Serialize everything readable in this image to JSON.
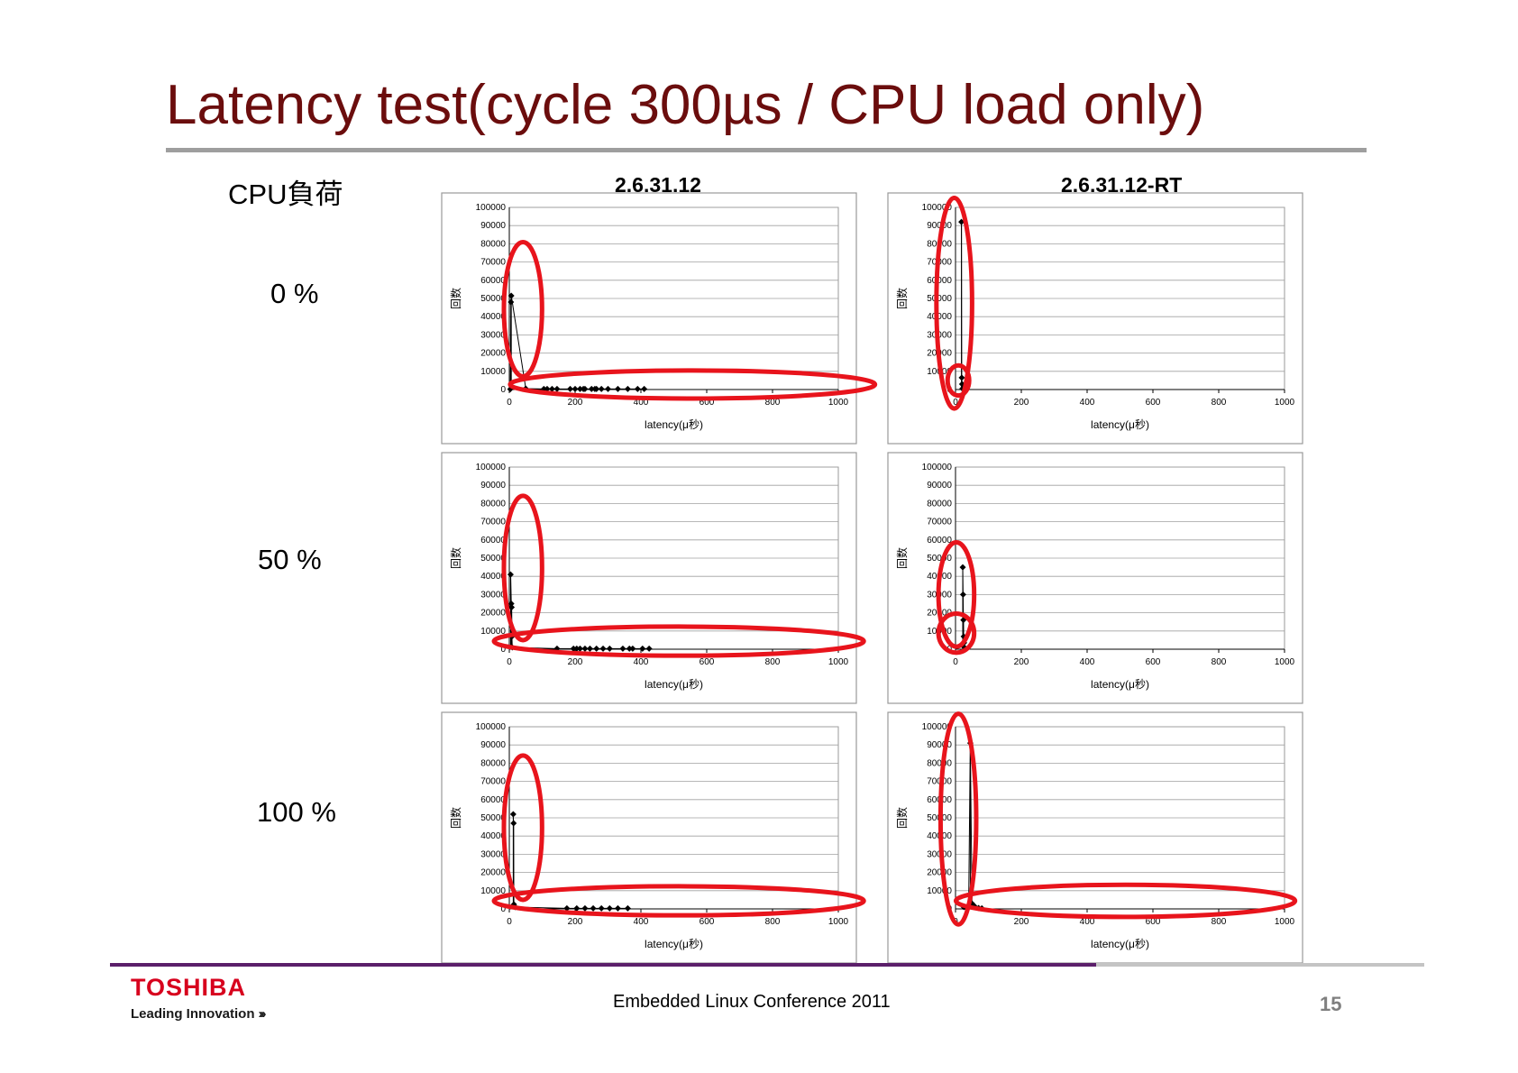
{
  "slide": {
    "title": "Latency test(cycle 300µs / CPU load only)",
    "column_header_load": "CPU負荷",
    "column_header_left": "2.6.31.12",
    "column_header_right": "2.6.31.12-RT",
    "row_labels": [
      "0 %",
      "50 %",
      "100 %"
    ],
    "footer": {
      "logo_name": "TOSHIBA",
      "logo_tagline": "Leading Innovation",
      "logo_chevrons": "›››",
      "conference": "Embedded Linux Conference 2011",
      "page_number": "15"
    }
  },
  "colors": {
    "title": "#6b0d0d",
    "highlight_ellipse": "#e8141c",
    "marker": "#000000",
    "gridline": "#a0a0a0",
    "frame": "#9a9a9a",
    "logo": "#d7001d"
  },
  "chart_data": [
    {
      "type": "scatter",
      "kernel": "2.6.31.12",
      "cpu_load": "0 %",
      "xlabel": "latency(μ秒)",
      "ylabel": "回数",
      "xlim": [
        0,
        1000
      ],
      "ylim": [
        0,
        100000
      ],
      "xticks": [
        0,
        200,
        400,
        600,
        800,
        1000
      ],
      "yticks": [
        0,
        10000,
        20000,
        30000,
        40000,
        50000,
        60000,
        70000,
        80000,
        90000,
        100000
      ],
      "grid": "horizontal",
      "markers": "diamond",
      "drop_lines": true,
      "x": [
        3,
        5,
        6,
        50,
        105,
        115,
        130,
        145,
        185,
        200,
        215,
        225,
        230,
        250,
        260,
        265,
        280,
        300,
        330,
        360,
        390,
        410
      ],
      "y": [
        200,
        48000,
        51500,
        500,
        300,
        300,
        300,
        300,
        300,
        300,
        300,
        300,
        300,
        300,
        300,
        300,
        300,
        300,
        300,
        300,
        300,
        300
      ]
    },
    {
      "type": "scatter",
      "kernel": "2.6.31.12-RT",
      "cpu_load": "0 %",
      "xlabel": "latency(μ秒)",
      "ylabel": "回数",
      "xlim": [
        0,
        1000
      ],
      "ylim": [
        0,
        100000
      ],
      "xticks": [
        0,
        200,
        400,
        600,
        800,
        1000
      ],
      "yticks": [
        0,
        10000,
        20000,
        30000,
        40000,
        50000,
        60000,
        70000,
        80000,
        90000,
        100000
      ],
      "grid": "horizontal",
      "markers": "diamond",
      "drop_lines": true,
      "x": [
        18,
        19,
        20,
        21
      ],
      "y": [
        92000,
        6500,
        3000,
        500
      ]
    },
    {
      "type": "scatter",
      "kernel": "2.6.31.12",
      "cpu_load": "50 %",
      "xlabel": "latency(μ秒)",
      "ylabel": "回数",
      "xlim": [
        0,
        1000
      ],
      "ylim": [
        0,
        100000
      ],
      "xticks": [
        0,
        200,
        400,
        600,
        800,
        1000
      ],
      "yticks": [
        0,
        10000,
        20000,
        30000,
        40000,
        50000,
        60000,
        70000,
        80000,
        90000,
        100000
      ],
      "grid": "horizontal",
      "markers": "diamond",
      "drop_lines": true,
      "x": [
        4,
        6,
        7,
        8,
        9,
        145,
        195,
        205,
        215,
        230,
        245,
        265,
        285,
        305,
        345,
        365,
        375,
        405,
        425
      ],
      "y": [
        41000,
        25000,
        23000,
        7000,
        1000,
        300,
        300,
        300,
        300,
        300,
        300,
        300,
        300,
        300,
        300,
        300,
        300,
        300,
        300
      ]
    },
    {
      "type": "scatter",
      "kernel": "2.6.31.12-RT",
      "cpu_load": "50 %",
      "xlabel": "latency(μ秒)",
      "ylabel": "回数",
      "xlim": [
        0,
        1000
      ],
      "ylim": [
        0,
        100000
      ],
      "xticks": [
        0,
        200,
        400,
        600,
        800,
        1000
      ],
      "yticks": [
        0,
        10000,
        20000,
        30000,
        40000,
        50000,
        60000,
        70000,
        80000,
        90000,
        100000
      ],
      "grid": "horizontal",
      "markers": "diamond",
      "drop_lines": true,
      "x": [
        22,
        23,
        24,
        25,
        26,
        27
      ],
      "y": [
        45000,
        30000,
        16000,
        7000,
        3500,
        1000
      ]
    },
    {
      "type": "scatter",
      "kernel": "2.6.31.12",
      "cpu_load": "100 %",
      "xlabel": "latency(μ秒)",
      "ylabel": "回数",
      "xlim": [
        0,
        1000
      ],
      "ylim": [
        0,
        100000
      ],
      "xticks": [
        0,
        200,
        400,
        600,
        800,
        1000
      ],
      "yticks": [
        0,
        10000,
        20000,
        30000,
        40000,
        50000,
        60000,
        70000,
        80000,
        90000,
        100000
      ],
      "grid": "horizontal",
      "markers": "diamond",
      "drop_lines": true,
      "x": [
        12,
        13,
        14,
        18,
        175,
        205,
        230,
        255,
        280,
        305,
        330,
        360
      ],
      "y": [
        52000,
        47000,
        2500,
        1000,
        300,
        300,
        300,
        300,
        300,
        300,
        300,
        300
      ]
    },
    {
      "type": "scatter",
      "kernel": "2.6.31.12-RT",
      "cpu_load": "100 %",
      "xlabel": "latency(μ秒)",
      "ylabel": "回数",
      "xlim": [
        0,
        1000
      ],
      "ylim": [
        0,
        100000
      ],
      "xticks": [
        0,
        200,
        400,
        600,
        800,
        1000
      ],
      "yticks": [
        0,
        10000,
        20000,
        30000,
        40000,
        50000,
        60000,
        70000,
        80000,
        90000,
        100000
      ],
      "grid": "horizontal",
      "markers": "diamond",
      "drop_lines": true,
      "x": [
        25,
        30,
        35,
        40,
        45,
        50,
        55,
        60,
        70,
        80
      ],
      "y": [
        1000,
        1000,
        1000,
        1000,
        91000,
        3000,
        2000,
        1000,
        500,
        300
      ]
    }
  ]
}
